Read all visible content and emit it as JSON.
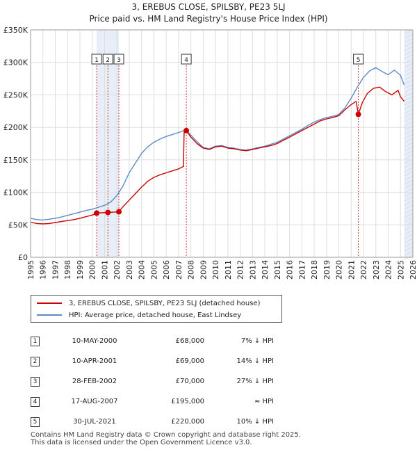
{
  "colors": {
    "property": "#cc0000",
    "hpi": "#5b8ac6",
    "shade": "#e8eef8",
    "grid": "#dddddd",
    "marker_line": "#cc0000"
  },
  "chart_data": {
    "type": "line",
    "title": "3, EREBUS CLOSE, SPILSBY, PE23 5LJ",
    "subtitle": "Price paid vs. HM Land Registry's House Price Index (HPI)",
    "x_range": [
      1995,
      2026
    ],
    "ylim": [
      0,
      350000
    ],
    "y_ticks": [
      0,
      50000,
      100000,
      150000,
      200000,
      250000,
      300000,
      350000
    ],
    "y_tick_labels": [
      "£0",
      "£50K",
      "£100K",
      "£150K",
      "£200K",
      "£250K",
      "£300K",
      "£350K"
    ],
    "x_ticks": [
      1995,
      1996,
      1997,
      1998,
      1999,
      2000,
      2001,
      2002,
      2003,
      2004,
      2005,
      2006,
      2007,
      2008,
      2009,
      2010,
      2011,
      2012,
      2013,
      2014,
      2015,
      2016,
      2017,
      2018,
      2019,
      2020,
      2021,
      2022,
      2023,
      2024,
      2025,
      2026
    ],
    "shaded_ranges": [
      [
        2000.36,
        2002.16
      ],
      [
        2025.3,
        2026.0
      ]
    ],
    "series": [
      {
        "name": "3, EREBUS CLOSE, SPILSBY, PE23 5LJ (detached house)",
        "points": [
          [
            1995.0,
            54000
          ],
          [
            1995.5,
            52000
          ],
          [
            1996.0,
            51500
          ],
          [
            1996.5,
            52000
          ],
          [
            1997.0,
            53500
          ],
          [
            1997.5,
            55000
          ],
          [
            1998.0,
            56500
          ],
          [
            1998.5,
            58000
          ],
          [
            1999.0,
            60000
          ],
          [
            1999.5,
            62500
          ],
          [
            2000.0,
            65000
          ],
          [
            2000.36,
            68000
          ],
          [
            2000.8,
            68500
          ],
          [
            2001.27,
            69000
          ],
          [
            2001.7,
            69500
          ],
          [
            2002.16,
            70000
          ],
          [
            2002.5,
            78000
          ],
          [
            2003.0,
            88000
          ],
          [
            2003.5,
            98000
          ],
          [
            2004.0,
            108000
          ],
          [
            2004.5,
            117000
          ],
          [
            2005.0,
            123000
          ],
          [
            2005.5,
            127000
          ],
          [
            2006.0,
            130000
          ],
          [
            2006.5,
            133000
          ],
          [
            2007.0,
            136000
          ],
          [
            2007.4,
            140000
          ],
          [
            2007.45,
            192000
          ],
          [
            2007.63,
            195000
          ],
          [
            2008.0,
            185000
          ],
          [
            2008.5,
            175000
          ],
          [
            2009.0,
            168000
          ],
          [
            2009.5,
            166000
          ],
          [
            2010.0,
            170000
          ],
          [
            2010.5,
            171000
          ],
          [
            2011.0,
            168000
          ],
          [
            2011.5,
            167000
          ],
          [
            2012.0,
            165000
          ],
          [
            2012.5,
            164000
          ],
          [
            2013.0,
            166000
          ],
          [
            2013.5,
            168000
          ],
          [
            2014.0,
            170000
          ],
          [
            2014.5,
            172000
          ],
          [
            2015.0,
            175000
          ],
          [
            2015.5,
            180000
          ],
          [
            2016.0,
            185000
          ],
          [
            2016.5,
            190000
          ],
          [
            2017.0,
            195000
          ],
          [
            2017.5,
            200000
          ],
          [
            2018.0,
            205000
          ],
          [
            2018.5,
            210000
          ],
          [
            2019.0,
            213000
          ],
          [
            2019.5,
            215000
          ],
          [
            2020.0,
            218000
          ],
          [
            2020.5,
            227000
          ],
          [
            2021.0,
            235000
          ],
          [
            2021.4,
            240000
          ],
          [
            2021.58,
            220000
          ],
          [
            2021.9,
            238000
          ],
          [
            2022.3,
            252000
          ],
          [
            2022.8,
            260000
          ],
          [
            2023.3,
            262000
          ],
          [
            2023.8,
            255000
          ],
          [
            2024.3,
            250000
          ],
          [
            2024.8,
            257000
          ],
          [
            2025.0,
            247000
          ],
          [
            2025.3,
            240000
          ]
        ]
      },
      {
        "name": "HPI: Average price, detached house, East Lindsey",
        "points": [
          [
            1995.0,
            60000
          ],
          [
            1995.5,
            58000
          ],
          [
            1996.0,
            57500
          ],
          [
            1996.5,
            58500
          ],
          [
            1997.0,
            60000
          ],
          [
            1997.5,
            62000
          ],
          [
            1998.0,
            64500
          ],
          [
            1998.5,
            67000
          ],
          [
            1999.0,
            69500
          ],
          [
            1999.5,
            72000
          ],
          [
            2000.0,
            74000
          ],
          [
            2000.5,
            77000
          ],
          [
            2001.0,
            80000
          ],
          [
            2001.5,
            85000
          ],
          [
            2002.0,
            95000
          ],
          [
            2002.5,
            110000
          ],
          [
            2003.0,
            130000
          ],
          [
            2003.5,
            145000
          ],
          [
            2004.0,
            160000
          ],
          [
            2004.5,
            170000
          ],
          [
            2005.0,
            177000
          ],
          [
            2005.5,
            182000
          ],
          [
            2006.0,
            186000
          ],
          [
            2006.5,
            189000
          ],
          [
            2007.0,
            192000
          ],
          [
            2007.6,
            196000
          ],
          [
            2008.0,
            188000
          ],
          [
            2008.5,
            178000
          ],
          [
            2009.0,
            169000
          ],
          [
            2009.5,
            167000
          ],
          [
            2010.0,
            171000
          ],
          [
            2010.5,
            172000
          ],
          [
            2011.0,
            169000
          ],
          [
            2011.5,
            168000
          ],
          [
            2012.0,
            166000
          ],
          [
            2012.5,
            165000
          ],
          [
            2013.0,
            167000
          ],
          [
            2013.5,
            169000
          ],
          [
            2014.0,
            171000
          ],
          [
            2014.5,
            174000
          ],
          [
            2015.0,
            177000
          ],
          [
            2015.5,
            182000
          ],
          [
            2016.0,
            187000
          ],
          [
            2016.5,
            192000
          ],
          [
            2017.0,
            197000
          ],
          [
            2017.5,
            203000
          ],
          [
            2018.0,
            208000
          ],
          [
            2018.5,
            212000
          ],
          [
            2019.0,
            215000
          ],
          [
            2019.5,
            217000
          ],
          [
            2020.0,
            220000
          ],
          [
            2020.5,
            230000
          ],
          [
            2021.0,
            245000
          ],
          [
            2021.5,
            262000
          ],
          [
            2022.0,
            277000
          ],
          [
            2022.5,
            287000
          ],
          [
            2023.0,
            292000
          ],
          [
            2023.5,
            286000
          ],
          [
            2024.0,
            281000
          ],
          [
            2024.5,
            288000
          ],
          [
            2025.0,
            280000
          ],
          [
            2025.3,
            265000
          ]
        ]
      }
    ],
    "sales": [
      {
        "label": "1",
        "x": 2000.36,
        "price": 68000
      },
      {
        "label": "2",
        "x": 2001.27,
        "price": 69000
      },
      {
        "label": "3",
        "x": 2002.16,
        "price": 70000
      },
      {
        "label": "4",
        "x": 2007.63,
        "price": 195000
      },
      {
        "label": "5",
        "x": 2021.58,
        "price": 220000
      }
    ]
  },
  "legend": {
    "property_label": "3, EREBUS CLOSE, SPILSBY, PE23 5LJ (detached house)",
    "hpi_label": "HPI: Average price, detached house, East Lindsey"
  },
  "table": [
    {
      "num": "1",
      "date": "10-MAY-2000",
      "price": "£68,000",
      "hpi": "7% ↓ HPI"
    },
    {
      "num": "2",
      "date": "10-APR-2001",
      "price": "£69,000",
      "hpi": "14% ↓ HPI"
    },
    {
      "num": "3",
      "date": "28-FEB-2002",
      "price": "£70,000",
      "hpi": "27% ↓ HPI"
    },
    {
      "num": "4",
      "date": "17-AUG-2007",
      "price": "£195,000",
      "hpi": "≈ HPI"
    },
    {
      "num": "5",
      "date": "30-JUL-2021",
      "price": "£220,000",
      "hpi": "10% ↓ HPI"
    }
  ],
  "footer": {
    "line1": "Contains HM Land Registry data © Crown copyright and database right 2025.",
    "line2": "This data is licensed under the Open Government Licence v3.0."
  }
}
